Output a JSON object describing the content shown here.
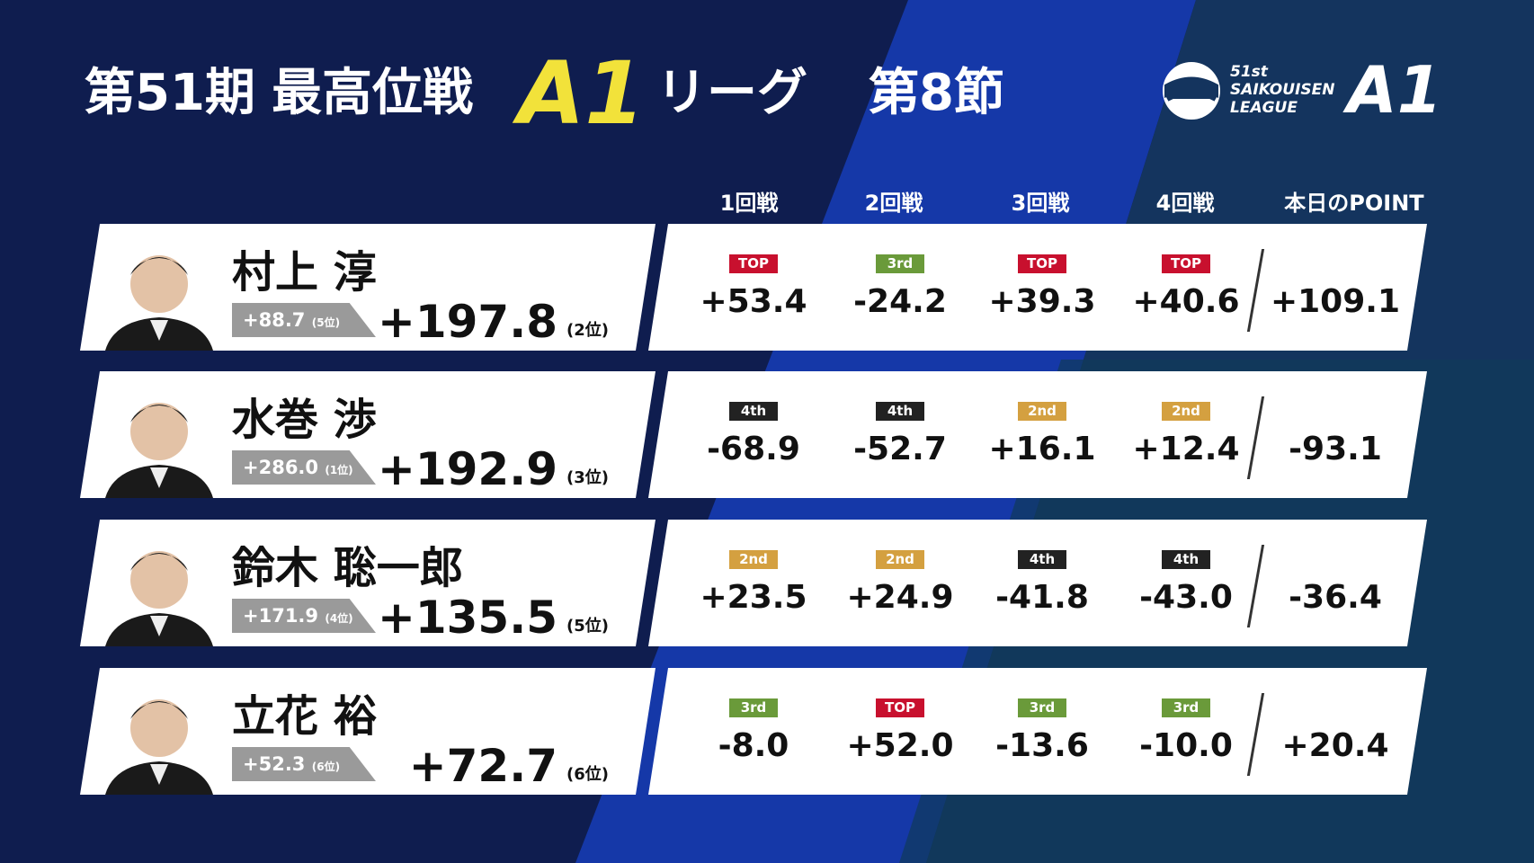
{
  "header": {
    "edition": "第51期",
    "league": "最高位戦",
    "grade": "A1",
    "suffix": "リーグ",
    "section": "第8節"
  },
  "logo": {
    "ordinal": "51st",
    "name": "SAIKOUISEN",
    "league": "LEAGUE",
    "grade": "A1"
  },
  "table": {
    "columns": [
      "1回戦",
      "2回戦",
      "3回戦",
      "4回戦",
      "本日のPOINT"
    ],
    "rows": [
      {
        "name": "村上 淳",
        "previous": "+88.7",
        "previous_rank": "(5位)",
        "total": "+197.8",
        "rank": "(2位)",
        "games": [
          {
            "place": "TOP",
            "score": "+53.4"
          },
          {
            "place": "3rd",
            "score": "-24.2"
          },
          {
            "place": "TOP",
            "score": "+39.3"
          },
          {
            "place": "TOP",
            "score": "+40.6"
          }
        ],
        "today": "+109.1"
      },
      {
        "name": "水巻 渉",
        "previous": "+286.0",
        "previous_rank": "(1位)",
        "total": "+192.9",
        "rank": "(3位)",
        "games": [
          {
            "place": "4th",
            "score": "-68.9"
          },
          {
            "place": "4th",
            "score": "-52.7"
          },
          {
            "place": "2nd",
            "score": "+16.1"
          },
          {
            "place": "2nd",
            "score": "+12.4"
          }
        ],
        "today": "-93.1"
      },
      {
        "name": "鈴木 聡一郎",
        "previous": "+171.9",
        "previous_rank": "(4位)",
        "total": "+135.5",
        "rank": "(5位)",
        "games": [
          {
            "place": "2nd",
            "score": "+23.5"
          },
          {
            "place": "2nd",
            "score": "+24.9"
          },
          {
            "place": "4th",
            "score": "-41.8"
          },
          {
            "place": "4th",
            "score": "-43.0"
          }
        ],
        "today": "-36.4"
      },
      {
        "name": "立花 裕",
        "previous": "+52.3",
        "previous_rank": "(6位)",
        "total": "+72.7",
        "rank": "(6位)",
        "games": [
          {
            "place": "3rd",
            "score": "-8.0"
          },
          {
            "place": "TOP",
            "score": "+52.0"
          },
          {
            "place": "3rd",
            "score": "-13.6"
          },
          {
            "place": "3rd",
            "score": "-10.0"
          }
        ],
        "today": "+20.4"
      }
    ]
  }
}
